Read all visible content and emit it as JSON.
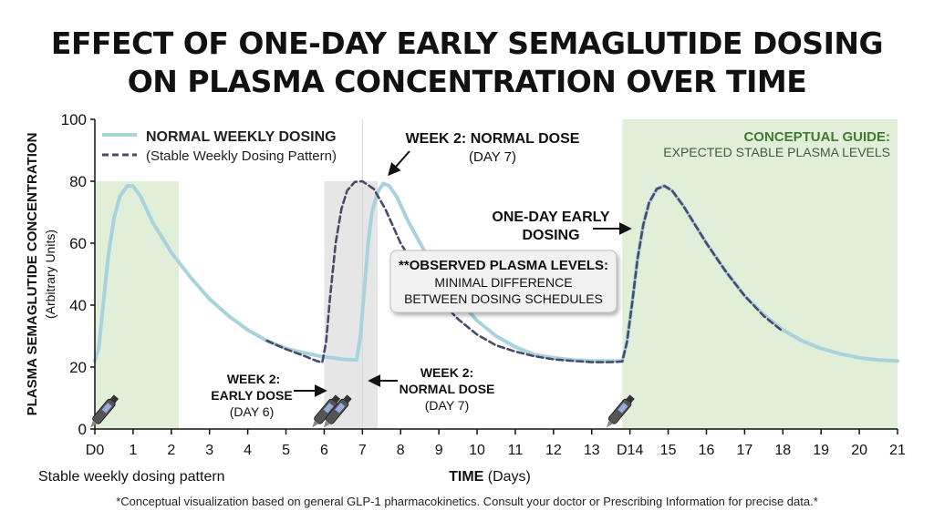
{
  "header": {
    "title_line1": "EFFECT OF ONE-DAY EARLY SEMAGLUTIDE DOSING",
    "title_line2": "ON PLASMA CONCENTRATION OVER TIME"
  },
  "footnote": "*Conceptual visualization based on general GLP-1 pharmacokinetics. Consult your doctor or Prescribing Information for precise data.*",
  "colors": {
    "normal_line": "#a8d3dd",
    "early_line": "#4a4a68",
    "green_band": "#e1efd9",
    "gray_band": "#e6e6e6",
    "guide_title": "#3f7a34",
    "guide_text": "#3d5e36"
  },
  "chart_data": {
    "type": "line",
    "title": "EFFECT OF ONE-DAY EARLY SEMAGLUTIDE DOSING ON PLASMA CONCENTRATION OVER TIME",
    "ylabel": "PLASMA SEMAGLUTIDE CONCENTRATION",
    "ylabel_sub": "(Arbitrary Units)",
    "xlabel": "TIME",
    "xlabel_unit": " (Days)",
    "xlabel_left": "Stable weekly dosing pattern",
    "xlim": [
      0,
      21
    ],
    "ylim": [
      0,
      100
    ],
    "y_ticks": [
      0,
      20,
      40,
      60,
      80,
      100
    ],
    "x_ticks": [
      0,
      1,
      2,
      3,
      4,
      5,
      6,
      7,
      8,
      9,
      10,
      11,
      12,
      13,
      14,
      15,
      16,
      17,
      18,
      19,
      20,
      21
    ],
    "x_tick_labels": [
      "D0",
      "1",
      "2",
      "3",
      "4",
      "5",
      "6",
      "7",
      "8",
      "9",
      "10",
      "11",
      "12",
      "13",
      "D14",
      "15",
      "16",
      "17",
      "18",
      "19",
      "20",
      "21"
    ],
    "grid": false,
    "legend_position": "top-left",
    "series": [
      {
        "name": "NORMAL WEEKLY DOSING",
        "style": "solid",
        "points": [
          [
            0,
            22
          ],
          [
            0.1,
            26
          ],
          [
            0.2,
            38
          ],
          [
            0.35,
            56
          ],
          [
            0.5,
            68
          ],
          [
            0.65,
            75
          ],
          [
            0.85,
            78.5
          ],
          [
            1.0,
            78.5
          ],
          [
            1.2,
            75
          ],
          [
            1.5,
            67
          ],
          [
            2,
            57
          ],
          [
            2.5,
            49
          ],
          [
            3,
            42
          ],
          [
            3.5,
            36.5
          ],
          [
            4,
            32
          ],
          [
            4.5,
            28.5
          ],
          [
            5,
            26
          ],
          [
            5.5,
            24.5
          ],
          [
            6,
            23.3
          ],
          [
            6.5,
            22.5
          ],
          [
            6.85,
            22.3
          ],
          [
            6.95,
            30
          ],
          [
            7.05,
            45
          ],
          [
            7.15,
            60
          ],
          [
            7.25,
            70
          ],
          [
            7.4,
            76.5
          ],
          [
            7.55,
            79.3
          ],
          [
            7.7,
            78.5
          ],
          [
            7.9,
            75
          ],
          [
            8.2,
            67
          ],
          [
            8.6,
            58
          ],
          [
            9,
            50
          ],
          [
            9.5,
            42
          ],
          [
            10,
            35
          ],
          [
            10.5,
            30
          ],
          [
            11,
            26.5
          ],
          [
            11.5,
            24
          ],
          [
            12,
            23
          ],
          [
            12.5,
            22.3
          ],
          [
            13,
            22
          ],
          [
            13.5,
            22
          ],
          [
            13.8,
            22
          ],
          [
            13.92,
            28
          ],
          [
            14.05,
            40
          ],
          [
            14.2,
            55
          ],
          [
            14.35,
            66
          ],
          [
            14.5,
            73
          ],
          [
            14.7,
            77.5
          ],
          [
            14.9,
            78.5
          ],
          [
            15.1,
            77
          ],
          [
            15.4,
            72
          ],
          [
            16,
            60
          ],
          [
            16.5,
            51
          ],
          [
            17,
            43
          ],
          [
            17.5,
            37
          ],
          [
            18,
            32
          ],
          [
            18.5,
            28.5
          ],
          [
            19,
            26
          ],
          [
            19.5,
            24.3
          ],
          [
            20,
            23
          ],
          [
            20.5,
            22.3
          ],
          [
            21,
            22
          ]
        ]
      },
      {
        "name": "(Stable Weekly Dosing Pattern)",
        "style": "dashed",
        "points": [
          [
            4.5,
            28.5
          ],
          [
            5,
            25.8
          ],
          [
            5.5,
            23.5
          ],
          [
            5.8,
            22
          ],
          [
            5.95,
            21.5
          ],
          [
            6.05,
            28
          ],
          [
            6.15,
            42
          ],
          [
            6.3,
            60
          ],
          [
            6.45,
            71
          ],
          [
            6.6,
            77
          ],
          [
            6.8,
            79.8
          ],
          [
            7.0,
            80
          ],
          [
            7.3,
            77.5
          ],
          [
            7.6,
            71
          ],
          [
            8,
            60
          ],
          [
            8.5,
            50
          ],
          [
            9,
            42
          ],
          [
            9.5,
            35.5
          ],
          [
            10,
            30.5
          ],
          [
            10.5,
            27
          ],
          [
            11,
            25
          ],
          [
            11.5,
            23.5
          ],
          [
            12,
            22.5
          ],
          [
            12.5,
            22
          ],
          [
            13,
            21.6
          ],
          [
            13.5,
            21.6
          ],
          [
            13.8,
            21.8
          ],
          [
            13.92,
            28
          ],
          [
            14.05,
            40
          ],
          [
            14.2,
            55
          ],
          [
            14.35,
            66
          ],
          [
            14.5,
            73
          ],
          [
            14.7,
            77.5
          ],
          [
            14.9,
            78.5
          ],
          [
            15.1,
            77
          ],
          [
            15.4,
            72
          ],
          [
            16,
            60
          ],
          [
            16.5,
            51
          ],
          [
            17,
            43
          ],
          [
            17.5,
            36.5
          ],
          [
            18,
            31.5
          ]
        ]
      }
    ],
    "bands": [
      {
        "name": "green-band-left",
        "x": [
          0,
          2.2
        ],
        "y": [
          0,
          80
        ]
      },
      {
        "name": "green-band-right",
        "x": [
          13.8,
          21
        ],
        "y": [
          0,
          100
        ]
      },
      {
        "name": "gray-band",
        "x": [
          6.0,
          7.4
        ],
        "y": [
          0,
          80
        ]
      }
    ],
    "annotations": {
      "guide_title": "CONCEPTUAL GUIDE:",
      "guide_text": "EXPECTED STABLE PLASMA LEVELS",
      "week2_normal_top_line1": "WEEK 2: NORMAL DOSE",
      "week2_normal_top_line2": "(DAY 7)",
      "one_day_early_line1": "ONE-DAY EARLY",
      "one_day_early_line2": "DOSING",
      "observed_line1": "**OBSERVED PLASMA LEVELS:",
      "observed_line2": "MINIMAL DIFFERENCE",
      "observed_line3": "BETWEEN DOSING SCHEDULES",
      "early_dose_line1": "WEEK 2:",
      "early_dose_line2": "EARLY DOSE",
      "early_dose_line3": "(DAY 6)",
      "normal_dose_line1": "WEEK 2:",
      "normal_dose_line2": "NORMAL DOSE",
      "normal_dose_line3": "(DAY 7)"
    },
    "pen_icons_at_days": [
      0,
      5.8,
      6.1,
      13.5
    ]
  }
}
